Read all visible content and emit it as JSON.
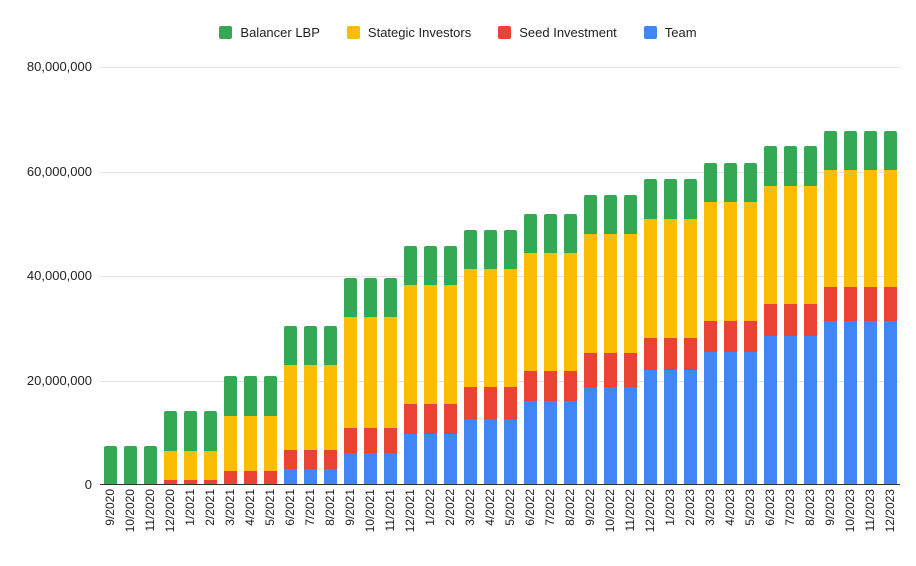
{
  "chart_data": {
    "type": "bar",
    "stacked": true,
    "title": "",
    "xlabel": "",
    "ylabel": "",
    "grid": true,
    "categories": [
      "9/2020",
      "10/2020",
      "11/2020",
      "12/2020",
      "1/2021",
      "2/2021",
      "3/2021",
      "4/2021",
      "5/2021",
      "6/2021",
      "7/2021",
      "8/2021",
      "9/2021",
      "10/2021",
      "11/2021",
      "12/2021",
      "1/2022",
      "2/2022",
      "3/2022",
      "4/2022",
      "5/2022",
      "6/2022",
      "7/2022",
      "8/2022",
      "9/2022",
      "10/2022",
      "11/2022",
      "12/2022",
      "1/2023",
      "2/2023",
      "3/2023",
      "4/2023",
      "5/2023",
      "6/2023",
      "7/2023",
      "8/2023",
      "9/2023",
      "10/2023",
      "11/2023",
      "12/2023"
    ],
    "series": [
      {
        "name": "Team",
        "color": "#4285f4",
        "values": [
          0,
          0,
          0,
          0,
          0,
          0,
          0,
          0,
          0,
          3000000,
          3000000,
          3000000,
          6200000,
          6200000,
          6200000,
          9800000,
          9800000,
          9800000,
          12700000,
          12700000,
          12700000,
          16000000,
          16000000,
          16000000,
          18800000,
          18800000,
          18800000,
          22100000,
          22100000,
          22100000,
          25400000,
          25400000,
          25400000,
          28500000,
          28500000,
          28500000,
          31400000,
          31400000,
          31400000,
          31400000
        ]
      },
      {
        "name": "Seed Investment",
        "color": "#ea4335",
        "values": [
          0,
          0,
          0,
          1000000,
          1000000,
          1000000,
          2700000,
          2700000,
          2700000,
          3700000,
          3700000,
          3700000,
          4800000,
          4800000,
          4800000,
          5800000,
          5800000,
          5800000,
          6100000,
          6100000,
          6100000,
          5900000,
          5900000,
          5900000,
          6400000,
          6400000,
          6400000,
          6000000,
          6000000,
          6000000,
          5900000,
          5900000,
          5900000,
          6100000,
          6100000,
          6100000,
          6500000,
          6500000,
          6500000,
          6500000
        ]
      },
      {
        "name": "Stategic Investors",
        "color": "#fbbc04",
        "values": [
          0,
          0,
          0,
          5600000,
          5600000,
          5600000,
          10600000,
          10600000,
          10600000,
          16200000,
          16200000,
          16200000,
          21100000,
          21100000,
          21100000,
          22700000,
          22700000,
          22700000,
          22500000,
          22500000,
          22500000,
          22500000,
          22500000,
          22500000,
          22900000,
          22900000,
          22900000,
          22900000,
          22900000,
          22900000,
          22900000,
          22900000,
          22900000,
          22700000,
          22700000,
          22700000,
          22400000,
          22400000,
          22400000,
          22400000
        ]
      },
      {
        "name": "Balancer LBP",
        "color": "#34a853",
        "values": [
          7500000,
          7500000,
          7500000,
          7500000,
          7500000,
          7500000,
          7500000,
          7500000,
          7500000,
          7500000,
          7500000,
          7500000,
          7500000,
          7500000,
          7500000,
          7500000,
          7500000,
          7500000,
          7500000,
          7500000,
          7500000,
          7500000,
          7500000,
          7500000,
          7500000,
          7500000,
          7500000,
          7500000,
          7500000,
          7500000,
          7500000,
          7500000,
          7500000,
          7500000,
          7500000,
          7500000,
          7500000,
          7500000,
          7500000,
          7500000
        ]
      }
    ],
    "legend": {
      "position": "top",
      "items": [
        {
          "label": "Balancer LBP",
          "color": "#34a853"
        },
        {
          "label": "Stategic Investors",
          "color": "#fbbc04"
        },
        {
          "label": "Seed Investment",
          "color": "#ea4335"
        },
        {
          "label": "Team",
          "color": "#4285f4"
        }
      ]
    },
    "y_axis": {
      "min": 0,
      "max": 80000000,
      "tick_interval": 20000000,
      "ticks": [
        0,
        20000000,
        40000000,
        60000000,
        80000000
      ],
      "tick_labels": [
        "0",
        "20,000,000",
        "40,000,000",
        "60,000,000",
        "80,000,000"
      ]
    },
    "colors": {
      "gridline": "#e3e3e3",
      "axis_line": "#333333",
      "label_text": "#1f1f1f",
      "background": "#ffffff"
    }
  }
}
